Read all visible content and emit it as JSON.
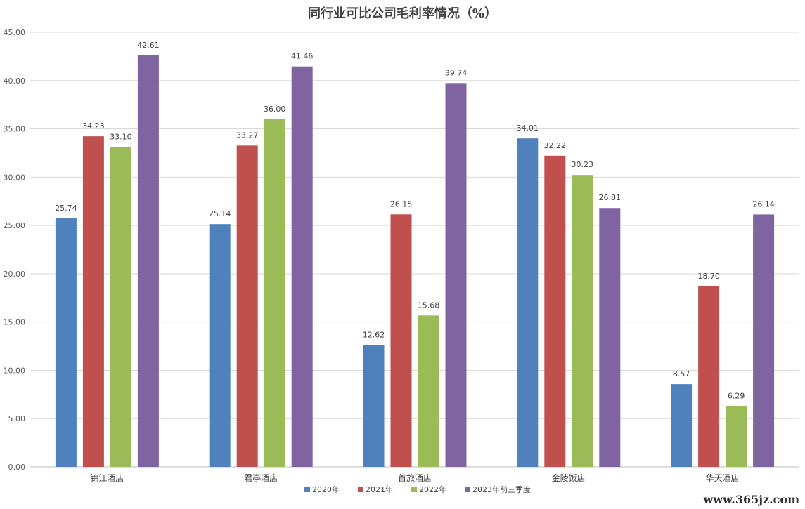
{
  "watermark": "www.365jz.com",
  "chart_data": {
    "type": "bar",
    "title": "同行业可比公司毛利率情况（%）",
    "xlabel": "",
    "ylabel": "",
    "ylim": [
      0,
      45
    ],
    "ytick_step": 5,
    "grid": true,
    "legend_position": "bottom",
    "categories": [
      "锦江酒店",
      "君亭酒店",
      "首旅酒店",
      "金陵饭店",
      "华天酒店"
    ],
    "series": [
      {
        "name": "2020年",
        "color": "#4f81bd",
        "values": [
          25.74,
          25.14,
          12.62,
          34.01,
          8.57
        ]
      },
      {
        "name": "2021年",
        "color": "#c0504d",
        "values": [
          34.23,
          33.27,
          26.15,
          32.22,
          18.7
        ]
      },
      {
        "name": "2022年",
        "color": "#9bbb59",
        "values": [
          33.1,
          36.0,
          15.68,
          30.23,
          6.29
        ]
      },
      {
        "name": "2023年前三季度",
        "color": "#8064a2",
        "values": [
          42.61,
          41.46,
          39.74,
          26.81,
          26.14
        ]
      }
    ]
  }
}
